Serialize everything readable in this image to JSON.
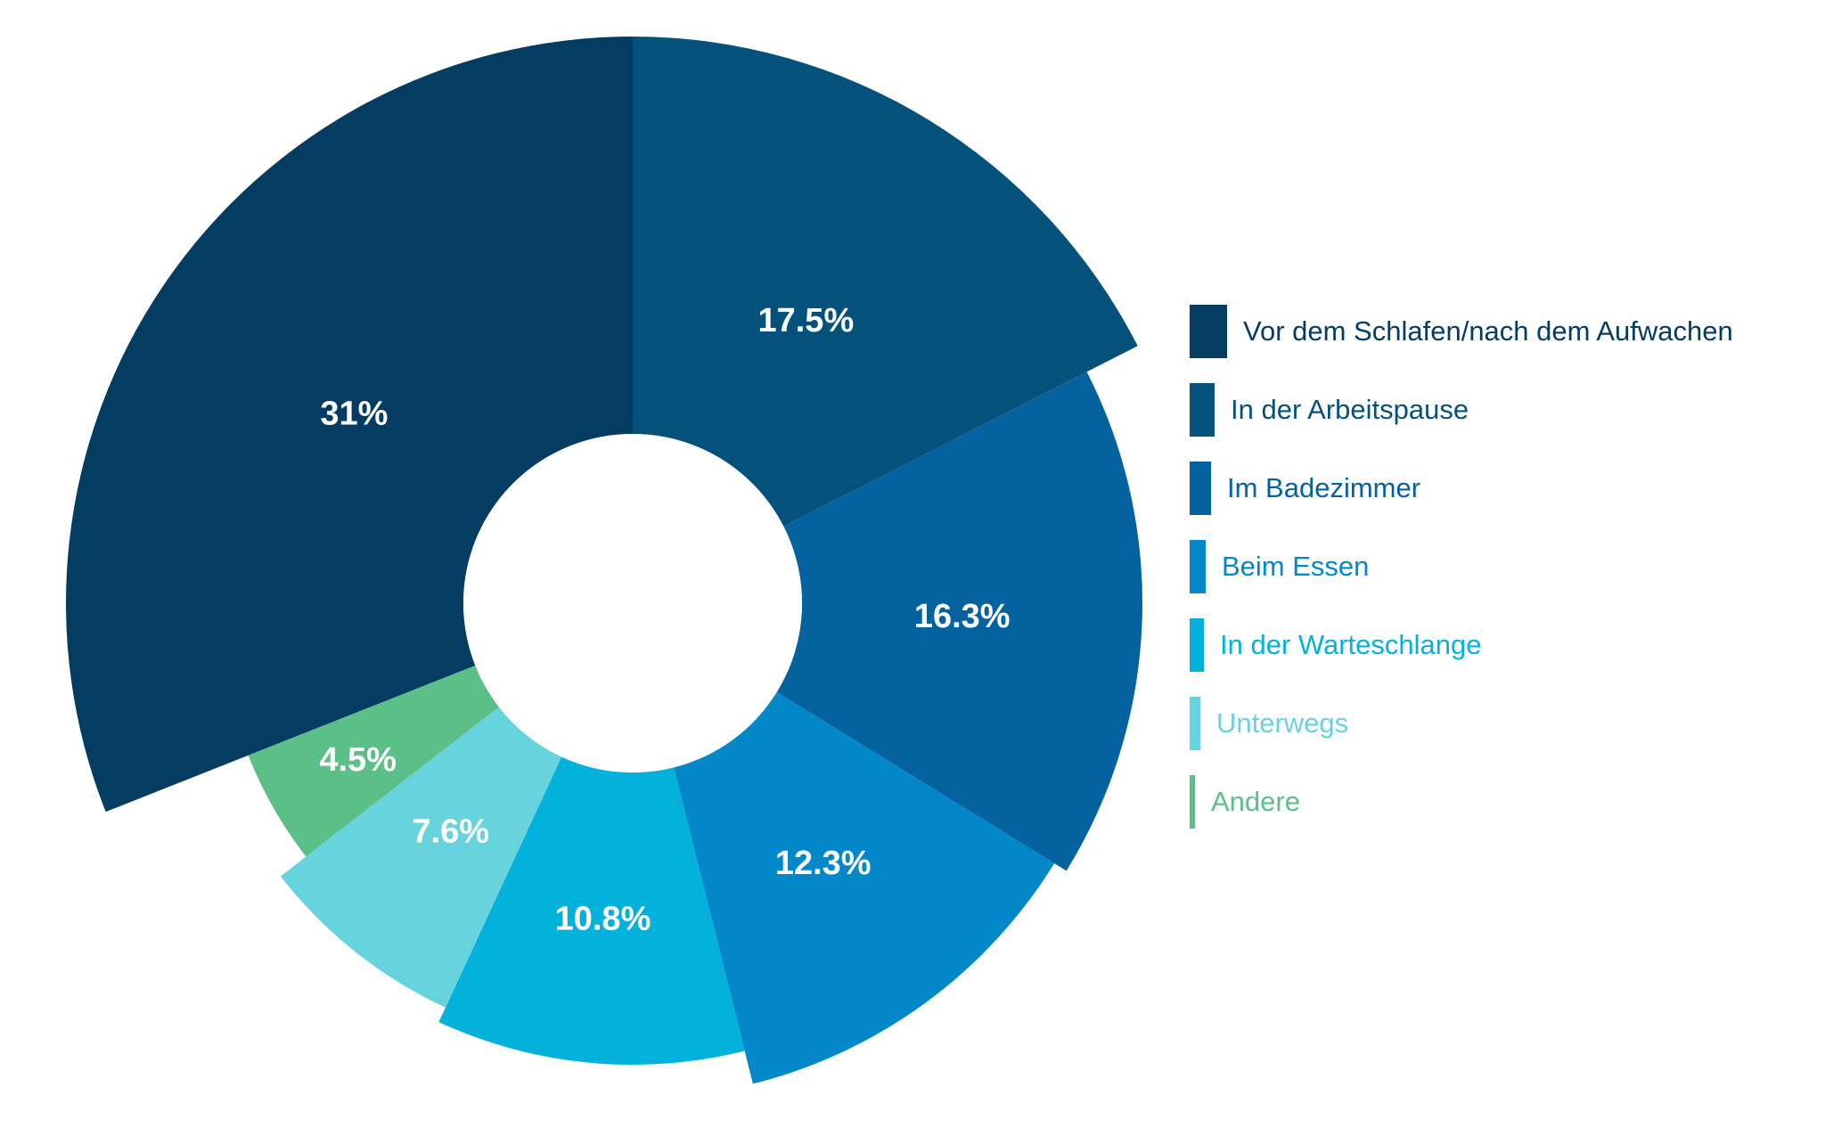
{
  "chart_data": {
    "type": "pie",
    "donut": true,
    "exploded": true,
    "categories": [
      "Vor dem Schlafen/nach dem Aufwachen",
      "In der Arbeitspause",
      "Im Badezimmer",
      "Beim Essen",
      "In der Warteschlange",
      "Unterwegs",
      "Andere"
    ],
    "values": [
      31,
      17.5,
      16.3,
      12.3,
      10.8,
      7.6,
      4.5
    ],
    "value_labels": [
      "31%",
      "17.5%",
      "16.3%",
      "12.3%",
      "10.8%",
      "7.6%",
      "4.5%"
    ],
    "colors": [
      "#053d62",
      "#04517c",
      "#04639f",
      "#0288c9",
      "#03b2dc",
      "#67d3dc",
      "#5bbf88"
    ],
    "legend": {
      "position": "right",
      "labels": [
        "Vor dem Schlafen/nach dem Aufwachen",
        "In der Arbeitspause",
        "Im Badezimmer",
        "Beim Essen",
        "In der Warteschlange",
        "Unterwegs",
        "Andere"
      ]
    }
  }
}
